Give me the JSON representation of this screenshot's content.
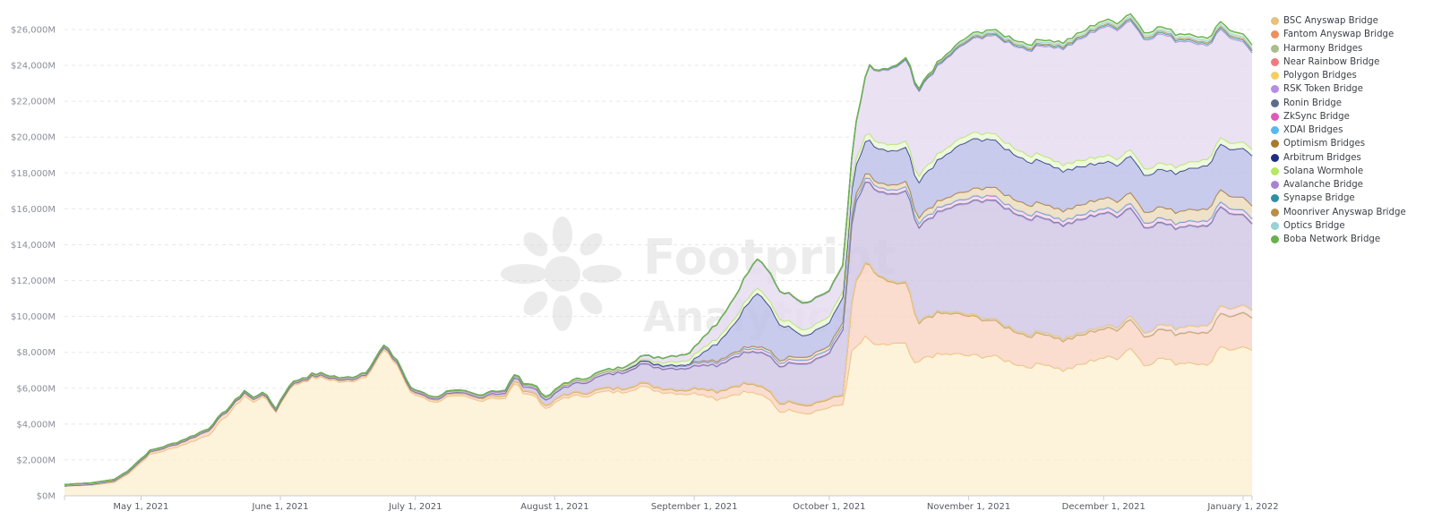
{
  "chart_data": {
    "type": "area",
    "stacked": true,
    "grid": "horizontal dashed",
    "legend_position": "right",
    "yaxis": {
      "min": 0,
      "max": 26000,
      "step": 2000,
      "unit": "M",
      "tick_labels": [
        "$0M",
        "$2,000M",
        "$4,000M",
        "$6,000M",
        "$8,000M",
        "$10,000M",
        "$12,000M",
        "$14,000M",
        "$16,000M",
        "$18,000M",
        "$20,000M",
        "$22,000M",
        "$24,000M",
        "$26,000M"
      ]
    },
    "xaxis": {
      "start": "2021-04-14",
      "end": "2022-01-03",
      "ticks": [
        {
          "date": "2021-05-01",
          "label": "May 1, 2021"
        },
        {
          "date": "2021-06-01",
          "label": "June 1, 2021"
        },
        {
          "date": "2021-07-01",
          "label": "July 1, 2021"
        },
        {
          "date": "2021-08-01",
          "label": "August 1, 2021"
        },
        {
          "date": "2021-09-01",
          "label": "September 1, 2021"
        },
        {
          "date": "2021-10-01",
          "label": "October 1, 2021"
        },
        {
          "date": "2021-11-01",
          "label": "November 1, 2021"
        },
        {
          "date": "2021-12-01",
          "label": "December 1, 2021"
        },
        {
          "date": "2022-01-01",
          "label": "January 1, 2022"
        }
      ]
    },
    "watermark": {
      "line1": "Footprint",
      "line2": "Analytics"
    },
    "series": [
      {
        "name": "BSC Anyswap Bridge",
        "color": "#e8c17a",
        "fill": "#fdefd2",
        "points": [
          [
            "2021-04-14",
            550
          ],
          [
            "2021-04-20",
            600
          ],
          [
            "2021-04-25",
            750
          ],
          [
            "2021-04-28",
            1200
          ],
          [
            "2021-05-03",
            2300
          ],
          [
            "2021-05-08",
            2650
          ],
          [
            "2021-05-12",
            3000
          ],
          [
            "2021-05-16",
            3400
          ],
          [
            "2021-05-19",
            4200
          ],
          [
            "2021-05-22",
            5000
          ],
          [
            "2021-05-24",
            5600
          ],
          [
            "2021-05-26",
            5200
          ],
          [
            "2021-05-28",
            5600
          ],
          [
            "2021-05-31",
            4700
          ],
          [
            "2021-06-03",
            6000
          ],
          [
            "2021-06-06",
            6400
          ],
          [
            "2021-06-09",
            6600
          ],
          [
            "2021-06-12",
            6500
          ],
          [
            "2021-06-15",
            6300
          ],
          [
            "2021-06-18",
            6500
          ],
          [
            "2021-06-20",
            6700
          ],
          [
            "2021-06-22",
            7400
          ],
          [
            "2021-06-24",
            8100
          ],
          [
            "2021-06-27",
            7300
          ],
          [
            "2021-06-30",
            5700
          ],
          [
            "2021-07-03",
            5500
          ],
          [
            "2021-07-05",
            5200
          ],
          [
            "2021-07-08",
            5500
          ],
          [
            "2021-07-12",
            5500
          ],
          [
            "2021-07-15",
            5300
          ],
          [
            "2021-07-18",
            5500
          ],
          [
            "2021-07-21",
            5400
          ],
          [
            "2021-07-23",
            6300
          ],
          [
            "2021-07-25",
            5800
          ],
          [
            "2021-07-28",
            5500
          ],
          [
            "2021-07-30",
            4800
          ],
          [
            "2021-08-03",
            5500
          ],
          [
            "2021-08-08",
            5600
          ],
          [
            "2021-08-12",
            5800
          ],
          [
            "2021-08-16",
            5800
          ],
          [
            "2021-08-20",
            6100
          ],
          [
            "2021-08-25",
            5800
          ],
          [
            "2021-08-30",
            5700
          ],
          [
            "2021-09-03",
            5700
          ],
          [
            "2021-09-06",
            5400
          ],
          [
            "2021-09-09",
            5600
          ],
          [
            "2021-09-12",
            5800
          ],
          [
            "2021-09-15",
            5700
          ],
          [
            "2021-09-18",
            5300
          ],
          [
            "2021-09-20",
            4700
          ],
          [
            "2021-09-23",
            4800
          ],
          [
            "2021-09-26",
            4600
          ],
          [
            "2021-09-29",
            4800
          ],
          [
            "2021-10-04",
            5100
          ],
          [
            "2021-10-06",
            8000
          ],
          [
            "2021-10-09",
            8800
          ],
          [
            "2021-10-12",
            8300
          ],
          [
            "2021-10-15",
            8500
          ],
          [
            "2021-10-18",
            8400
          ],
          [
            "2021-10-20",
            7300
          ],
          [
            "2021-10-23",
            7800
          ],
          [
            "2021-10-28",
            7900
          ],
          [
            "2021-11-02",
            7800
          ],
          [
            "2021-11-06",
            7800
          ],
          [
            "2021-11-10",
            7500
          ],
          [
            "2021-11-14",
            7200
          ],
          [
            "2021-11-18",
            7400
          ],
          [
            "2021-11-22",
            7000
          ],
          [
            "2021-11-26",
            7300
          ],
          [
            "2021-11-30",
            7700
          ],
          [
            "2021-12-04",
            7700
          ],
          [
            "2021-12-07",
            8300
          ],
          [
            "2021-12-10",
            7300
          ],
          [
            "2021-12-14",
            7700
          ],
          [
            "2021-12-17",
            7400
          ],
          [
            "2021-12-21",
            7500
          ],
          [
            "2021-12-24",
            7200
          ],
          [
            "2021-12-27",
            8400
          ],
          [
            "2021-12-30",
            8100
          ],
          [
            "2022-01-01",
            8400
          ],
          [
            "2022-01-03",
            8000
          ]
        ]
      },
      {
        "name": "Fantom Anyswap Bridge",
        "color": "#ec8f5d",
        "fill": "#f9d6c3",
        "points": [
          [
            "2021-04-14",
            0
          ],
          [
            "2021-05-10",
            150
          ],
          [
            "2021-05-17",
            250
          ],
          [
            "2021-05-31",
            60
          ],
          [
            "2021-08-30",
            200
          ],
          [
            "2021-09-05",
            400
          ],
          [
            "2021-09-10",
            450
          ],
          [
            "2021-09-30",
            450
          ],
          [
            "2021-10-04",
            500
          ],
          [
            "2021-10-07",
            3700
          ],
          [
            "2021-10-10",
            4200
          ],
          [
            "2021-10-12",
            3800
          ],
          [
            "2021-10-16",
            3300
          ],
          [
            "2021-10-19",
            3400
          ],
          [
            "2021-10-21",
            2100
          ],
          [
            "2021-10-25",
            2300
          ],
          [
            "2021-11-01",
            2200
          ],
          [
            "2021-11-08",
            1900
          ],
          [
            "2021-11-15",
            1700
          ],
          [
            "2021-12-01",
            1600
          ],
          [
            "2021-12-15",
            1600
          ],
          [
            "2021-12-25",
            1800
          ],
          [
            "2022-01-01",
            1900
          ],
          [
            "2022-01-03",
            1800
          ]
        ]
      },
      {
        "name": "Harmony Bridges",
        "color": "#a9bd8f",
        "fill": "#e6ecdd",
        "points": [
          [
            "2021-04-14",
            5
          ],
          [
            "2021-10-01",
            20
          ],
          [
            "2021-12-15",
            30
          ],
          [
            "2022-01-03",
            30
          ]
        ]
      },
      {
        "name": "Near Rainbow Bridge",
        "color": "#f07b7e",
        "fill": "#f8dada",
        "points": [
          [
            "2021-04-14",
            0
          ],
          [
            "2021-10-06",
            30
          ],
          [
            "2021-12-01",
            100
          ],
          [
            "2021-12-15",
            250
          ],
          [
            "2021-12-25",
            400
          ],
          [
            "2022-01-03",
            400
          ]
        ]
      },
      {
        "name": "Polygon Bridges",
        "color": "#f3cf62",
        "fill": "#fbf0cc",
        "points": [
          [
            "2021-04-14",
            0
          ],
          [
            "2022-01-03",
            0
          ]
        ]
      },
      {
        "name": "RSK Token Bridge",
        "color": "#b38de6",
        "fill": "#cfc7e4",
        "points": [
          [
            "2021-04-14",
            0
          ],
          [
            "2021-05-01",
            10
          ],
          [
            "2021-07-15",
            10
          ],
          [
            "2021-08-01",
            300
          ],
          [
            "2021-08-20",
            1000
          ],
          [
            "2021-09-01",
            1200
          ],
          [
            "2021-09-20",
            2000
          ],
          [
            "2021-10-01",
            2500
          ],
          [
            "2021-10-06",
            4300
          ],
          [
            "2021-10-10",
            4500
          ],
          [
            "2021-10-25",
            5500
          ],
          [
            "2021-11-05",
            6600
          ],
          [
            "2021-11-20",
            6300
          ],
          [
            "2021-12-01",
            6300
          ],
          [
            "2021-12-15",
            5600
          ],
          [
            "2021-12-27",
            5500
          ],
          [
            "2022-01-03",
            4800
          ]
        ]
      },
      {
        "name": "Ronin Bridge",
        "color": "#5e6e8a",
        "fill": "#d9dce5",
        "points": [
          [
            "2021-04-14",
            0
          ],
          [
            "2021-10-06",
            50
          ],
          [
            "2022-01-03",
            50
          ]
        ]
      },
      {
        "name": "ZkSync Bridge",
        "color": "#e05ab8",
        "fill": "#f3d5eb",
        "points": [
          [
            "2021-04-14",
            60
          ],
          [
            "2021-07-01",
            80
          ],
          [
            "2021-09-01",
            120
          ],
          [
            "2021-10-06",
            200
          ],
          [
            "2022-01-03",
            250
          ]
        ]
      },
      {
        "name": "XDAI Bridges",
        "color": "#5bb8ec",
        "fill": "#d6eefa",
        "points": [
          [
            "2021-04-14",
            10
          ],
          [
            "2022-01-03",
            20
          ]
        ]
      },
      {
        "name": "Optimism Bridges",
        "color": "#a87a2c",
        "fill": "#ecdcbc",
        "points": [
          [
            "2021-04-14",
            0
          ],
          [
            "2021-08-20",
            20
          ],
          [
            "2021-10-06",
            200
          ],
          [
            "2021-10-20",
            300
          ],
          [
            "2021-11-10",
            500
          ],
          [
            "2021-12-15",
            600
          ],
          [
            "2022-01-03",
            700
          ]
        ]
      },
      {
        "name": "Arbitrum Bridges",
        "color": "#1f2e85",
        "fill": "#bcbfe8",
        "points": [
          [
            "2021-04-14",
            0
          ],
          [
            "2021-08-31",
            0
          ],
          [
            "2021-09-05",
            800
          ],
          [
            "2021-09-10",
            1600
          ],
          [
            "2021-09-15",
            3000
          ],
          [
            "2021-09-20",
            2000
          ],
          [
            "2021-09-25",
            1200
          ],
          [
            "2021-10-02",
            1300
          ],
          [
            "2021-10-06",
            1500
          ],
          [
            "2021-10-10",
            1900
          ],
          [
            "2021-10-20",
            1900
          ],
          [
            "2021-11-01",
            2800
          ],
          [
            "2021-11-15",
            2400
          ],
          [
            "2021-12-01",
            2000
          ],
          [
            "2021-12-15",
            2100
          ],
          [
            "2022-01-03",
            2800
          ]
        ]
      },
      {
        "name": "Solana Wormhole",
        "color": "#b5e85f",
        "fill": "#ecf8d5",
        "points": [
          [
            "2021-04-14",
            0
          ],
          [
            "2021-08-15",
            0
          ],
          [
            "2021-09-01",
            250
          ],
          [
            "2021-10-01",
            350
          ],
          [
            "2022-01-03",
            350
          ]
        ]
      },
      {
        "name": "Avalanche Bridge",
        "color": "#a982d2",
        "fill": "#e5dcef",
        "points": [
          [
            "2021-04-14",
            0
          ],
          [
            "2021-07-15",
            0
          ],
          [
            "2021-08-15",
            100
          ],
          [
            "2021-09-01",
            400
          ],
          [
            "2021-09-15",
            1600
          ],
          [
            "2021-10-01",
            1400
          ],
          [
            "2021-10-06",
            1400
          ],
          [
            "2021-10-10",
            3800
          ],
          [
            "2021-10-20",
            4700
          ],
          [
            "2021-11-01",
            5200
          ],
          [
            "2021-11-15",
            5900
          ],
          [
            "2021-12-01",
            7200
          ],
          [
            "2021-12-15",
            7200
          ],
          [
            "2022-01-03",
            5400
          ]
        ]
      },
      {
        "name": "Synapse Bridge",
        "color": "#2e8fa5",
        "fill": "#d0e6ea",
        "points": [
          [
            "2021-04-14",
            0
          ],
          [
            "2021-09-01",
            0
          ],
          [
            "2021-10-15",
            50
          ],
          [
            "2022-01-03",
            100
          ]
        ]
      },
      {
        "name": "Moonriver Anyswap Bridge",
        "color": "#b88e48",
        "fill": "#efe2c8",
        "points": [
          [
            "2021-04-14",
            0
          ],
          [
            "2021-10-10",
            0
          ],
          [
            "2021-10-20",
            60
          ],
          [
            "2022-01-03",
            80
          ]
        ]
      },
      {
        "name": "Optics Bridge",
        "color": "#96d2d6",
        "fill": "#ddf0f1",
        "points": [
          [
            "2021-04-14",
            0
          ],
          [
            "2021-10-15",
            0
          ],
          [
            "2021-11-01",
            80
          ],
          [
            "2022-01-03",
            100
          ]
        ]
      },
      {
        "name": "Boba Network Bridge",
        "color": "#6ab04c",
        "fill": "#dbefce",
        "points": [
          [
            "2021-04-14",
            0
          ],
          [
            "2021-10-20",
            0
          ],
          [
            "2021-11-01",
            100
          ],
          [
            "2022-01-03",
            150
          ]
        ]
      }
    ]
  }
}
